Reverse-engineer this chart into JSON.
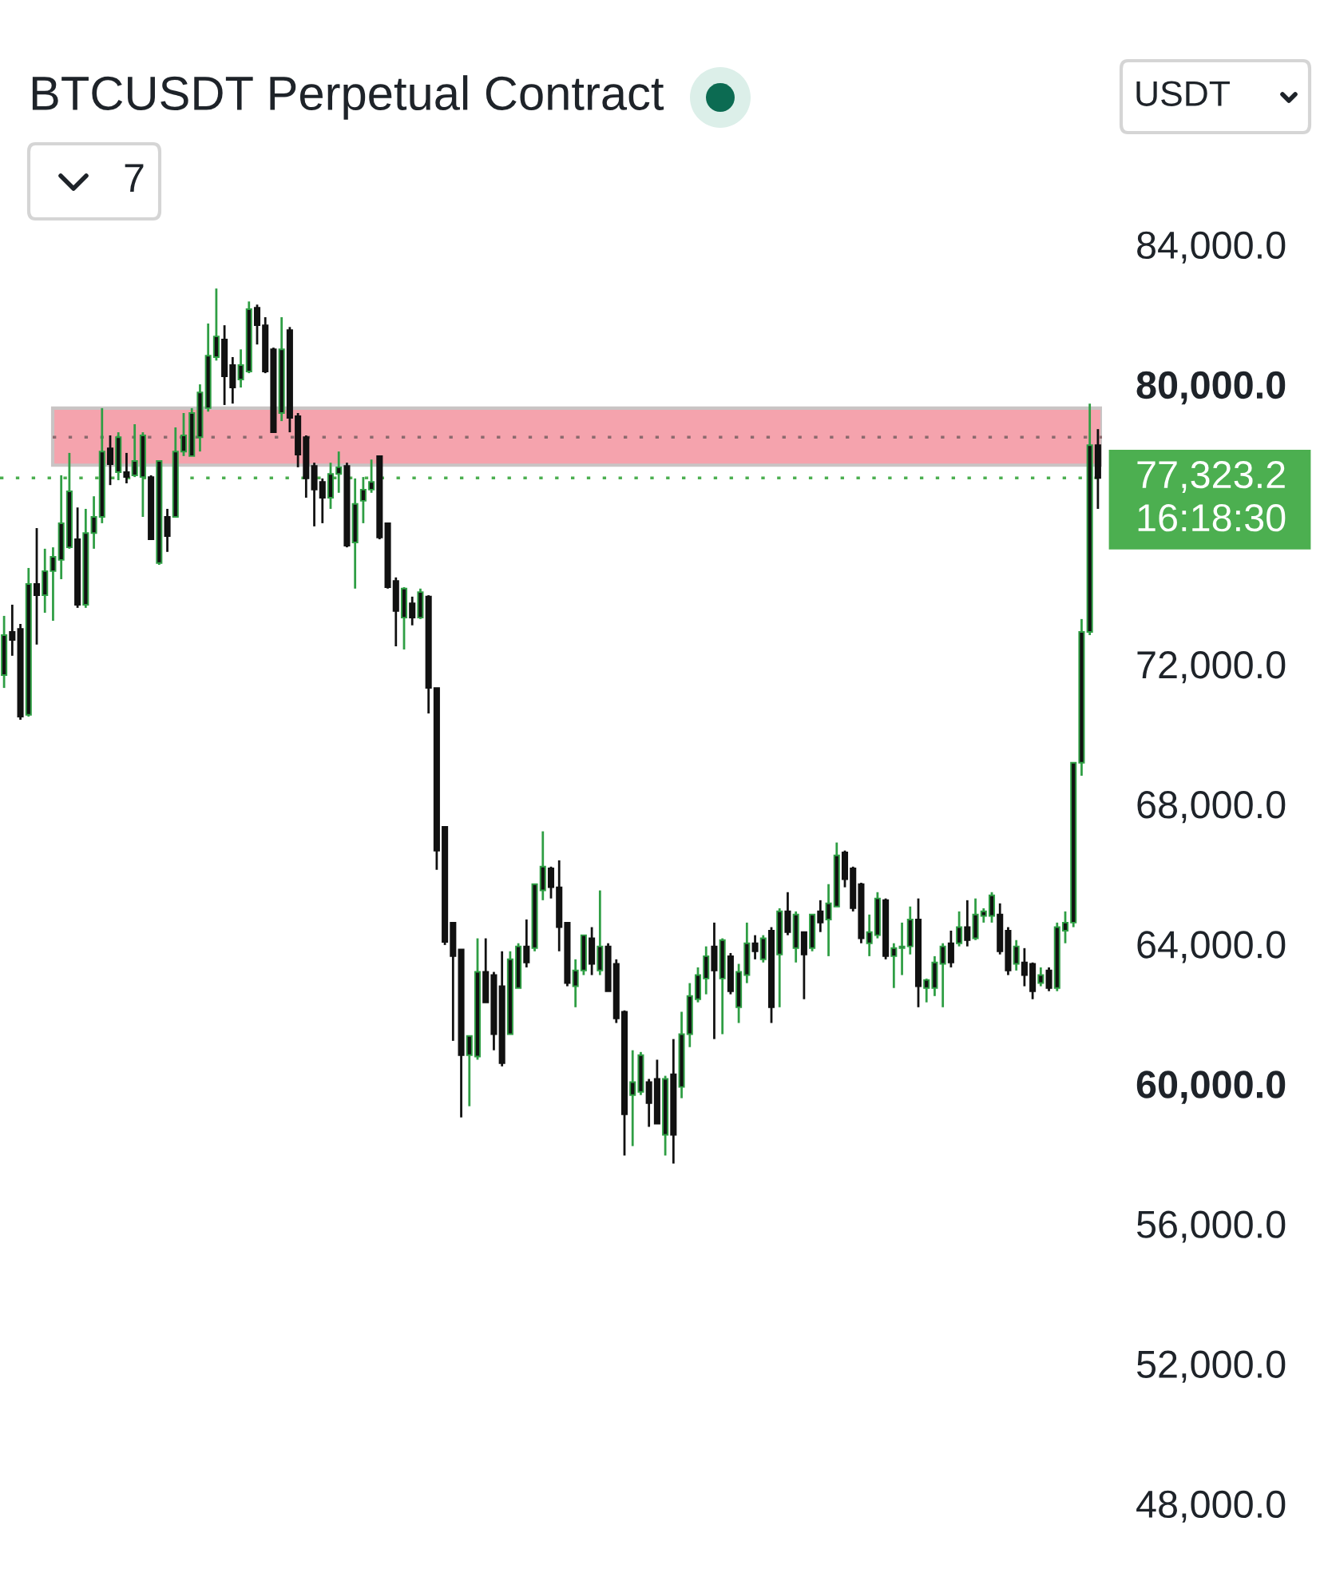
{
  "chart_data": {
    "type": "candlestick",
    "title": "BTCUSDT Perpetual Contract",
    "annotations": [
      "7",
      "USDT",
      "16:18:30"
    ],
    "categories": [
      null,
      null,
      null,
      null,
      null,
      null,
      null,
      null,
      null,
      null,
      null,
      null,
      null,
      null,
      null,
      null,
      null,
      null,
      null,
      null,
      null,
      null,
      null,
      null,
      null,
      null,
      null,
      null,
      null,
      null,
      null,
      null,
      null,
      null,
      null,
      null,
      null,
      null,
      null,
      null,
      null,
      null,
      null,
      null,
      null,
      null,
      null,
      null,
      null,
      null,
      null,
      null,
      null,
      null,
      null,
      null,
      null,
      null,
      null,
      null,
      null,
      null,
      null,
      null,
      null,
      null,
      null,
      null,
      null,
      null,
      null,
      null,
      null,
      null,
      null,
      null,
      null,
      null,
      null,
      null,
      null,
      null,
      null,
      null,
      null,
      null,
      null,
      null,
      null,
      null,
      null,
      null,
      null,
      null,
      null,
      null,
      null,
      null,
      null,
      null,
      null,
      null,
      null,
      null,
      null,
      null,
      null,
      null,
      null,
      null,
      null,
      null,
      null,
      null,
      null,
      null,
      null,
      null,
      null,
      null,
      null,
      null,
      null,
      null,
      null,
      null,
      null,
      null,
      null,
      null,
      null,
      null,
      null,
      null,
      null
    ],
    "ohlc": [
      [
        71690,
        73380,
        71320,
        72830
      ],
      [
        72920,
        73700,
        72240,
        72690
      ],
      [
        73010,
        73150,
        70410,
        70500
      ],
      [
        70550,
        74750,
        70500,
        74290
      ],
      [
        74290,
        75890,
        72560,
        73970
      ],
      [
        73970,
        75300,
        73470,
        74660
      ],
      [
        74660,
        75340,
        73240,
        75070
      ],
      [
        74980,
        77400,
        74430,
        76030
      ],
      [
        75340,
        78040,
        75300,
        76940
      ],
      [
        75570,
        76480,
        73610,
        73700
      ],
      [
        73700,
        76440,
        73610,
        75750
      ],
      [
        75750,
        76800,
        75300,
        76210
      ],
      [
        76210,
        79320,
        76030,
        78080
      ],
      [
        78170,
        78540,
        77120,
        77720
      ],
      [
        77490,
        78630,
        77260,
        78490
      ],
      [
        77490,
        78040,
        77170,
        77350
      ],
      [
        77400,
        78860,
        77350,
        77810
      ],
      [
        77350,
        78630,
        76210,
        78540
      ],
      [
        77350,
        77400,
        75570,
        75570
      ],
      [
        74890,
        77810,
        74840,
        77810
      ],
      [
        76210,
        76440,
        75210,
        75660
      ],
      [
        76210,
        78770,
        76210,
        78080
      ],
      [
        78080,
        79180,
        77950,
        78540
      ],
      [
        77950,
        79320,
        77950,
        79180
      ],
      [
        78490,
        80000,
        78080,
        79770
      ],
      [
        79320,
        81740,
        79220,
        80820
      ],
      [
        80780,
        82740,
        80680,
        81370
      ],
      [
        81280,
        81690,
        79410,
        80230
      ],
      [
        80550,
        80780,
        79450,
        79910
      ],
      [
        80140,
        81000,
        79910,
        80550
      ],
      [
        80370,
        82370,
        80320,
        82150
      ],
      [
        82190,
        82280,
        81140,
        81690
      ],
      [
        81690,
        81920,
        80320,
        80370
      ],
      [
        81000,
        81050,
        78630,
        78630
      ],
      [
        79180,
        81920,
        78950,
        81000
      ],
      [
        81550,
        81640,
        78630,
        79040
      ],
      [
        79090,
        79180,
        77630,
        77990
      ],
      [
        78490,
        78540,
        76760,
        77310
      ],
      [
        77670,
        77760,
        75940,
        76990
      ],
      [
        77210,
        77310,
        76030,
        76760
      ],
      [
        76760,
        77760,
        76440,
        77440
      ],
      [
        77440,
        78080,
        76900,
        77630
      ],
      [
        77670,
        77760,
        75340,
        75390
      ],
      [
        75480,
        77310,
        74160,
        76580
      ],
      [
        76670,
        77350,
        76030,
        76990
      ],
      [
        76990,
        77850,
        76900,
        77210
      ],
      [
        77950,
        77950,
        75570,
        75620
      ],
      [
        76030,
        76030,
        74160,
        74200
      ],
      [
        74380,
        74480,
        72510,
        73520
      ],
      [
        73330,
        74200,
        72420,
        74160
      ],
      [
        73740,
        73930,
        73110,
        73330
      ],
      [
        73330,
        74160,
        73290,
        74060
      ],
      [
        73930,
        73970,
        70590,
        71320
      ],
      [
        71320,
        71320,
        66120,
        66670
      ],
      [
        67350,
        67350,
        63970,
        64060
      ],
      [
        64610,
        64610,
        61230,
        63650
      ],
      [
        63840,
        63840,
        59040,
        60820
      ],
      [
        60820,
        61370,
        59360,
        61370
      ],
      [
        60780,
        64160,
        60690,
        63200
      ],
      [
        63200,
        64160,
        62330,
        62330
      ],
      [
        63110,
        63200,
        60960,
        61420
      ],
      [
        62790,
        63790,
        60500,
        60590
      ],
      [
        61420,
        63790,
        61420,
        63560
      ],
      [
        62740,
        64020,
        62740,
        63930
      ],
      [
        63930,
        64700,
        63330,
        63470
      ],
      [
        63880,
        65710,
        63790,
        65710
      ],
      [
        65530,
        67220,
        65250,
        66210
      ],
      [
        66160,
        66210,
        65300,
        65620
      ],
      [
        65620,
        66390,
        63790,
        64480
      ],
      [
        64610,
        64610,
        62790,
        62880
      ],
      [
        62790,
        63560,
        62190,
        63240
      ],
      [
        63240,
        64250,
        63110,
        64250
      ],
      [
        64160,
        64480,
        63110,
        63430
      ],
      [
        63240,
        65530,
        63110,
        63930
      ],
      [
        63930,
        64020,
        62650,
        62650
      ],
      [
        63430,
        63560,
        61740,
        61870
      ],
      [
        62060,
        62100,
        57950,
        59130
      ],
      [
        59680,
        60960,
        58220,
        60050
      ],
      [
        59770,
        60910,
        59680,
        60820
      ],
      [
        60050,
        60140,
        58770,
        59450
      ],
      [
        60140,
        60690,
        58860,
        58860
      ],
      [
        58540,
        60230,
        57950,
        60140
      ],
      [
        60270,
        61280,
        57720,
        58540
      ],
      [
        59910,
        62060,
        59590,
        61420
      ],
      [
        61420,
        62880,
        61050,
        62510
      ],
      [
        62420,
        63330,
        62330,
        63110
      ],
      [
        63010,
        63930,
        62560,
        63650
      ],
      [
        63930,
        64610,
        61280,
        63240
      ],
      [
        63010,
        64160,
        61420,
        64110
      ],
      [
        63650,
        63740,
        62560,
        62650
      ],
      [
        62190,
        63430,
        61740,
        63200
      ],
      [
        63110,
        64610,
        62880,
        64020
      ],
      [
        64020,
        64250,
        63560,
        63790
      ],
      [
        63560,
        64250,
        63470,
        64160
      ],
      [
        64380,
        64480,
        61740,
        62190
      ],
      [
        63700,
        65020,
        62190,
        64930
      ],
      [
        64930,
        65480,
        64250,
        64340
      ],
      [
        63880,
        64930,
        63470,
        64840
      ],
      [
        64340,
        64340,
        62420,
        63700
      ],
      [
        63880,
        64840,
        63790,
        64840
      ],
      [
        64930,
        65250,
        64340,
        64610
      ],
      [
        64700,
        65710,
        63650,
        65160
      ],
      [
        65070,
        66900,
        65070,
        66530
      ],
      [
        66620,
        66670,
        65620,
        65850
      ],
      [
        66160,
        66210,
        64930,
        65020
      ],
      [
        65710,
        65750,
        64020,
        64160
      ],
      [
        64020,
        64840,
        63650,
        64340
      ],
      [
        64250,
        65480,
        64160,
        65300
      ],
      [
        65250,
        65300,
        63560,
        63650
      ],
      [
        63650,
        64020,
        62740,
        63880
      ],
      [
        63880,
        64610,
        63110,
        63930
      ],
      [
        63930,
        65070,
        63700,
        64700
      ],
      [
        64700,
        65300,
        62190,
        62790
      ],
      [
        62740,
        63010,
        62330,
        62970
      ],
      [
        62740,
        63650,
        62510,
        63470
      ],
      [
        63430,
        64020,
        62190,
        63930
      ],
      [
        64020,
        64380,
        63330,
        63470
      ],
      [
        64020,
        64930,
        63930,
        64480
      ],
      [
        64480,
        65250,
        63930,
        64110
      ],
      [
        64160,
        65300,
        64110,
        64840
      ],
      [
        64800,
        65020,
        64610,
        64930
      ],
      [
        64800,
        65480,
        64610,
        65390
      ],
      [
        64840,
        65160,
        63700,
        63790
      ],
      [
        64380,
        64480,
        63110,
        63240
      ],
      [
        63430,
        64110,
        63240,
        63930
      ],
      [
        63470,
        63880,
        62790,
        63110
      ],
      [
        63430,
        63470,
        62420,
        62650
      ],
      [
        62880,
        63330,
        62790,
        63110
      ],
      [
        63240,
        63330,
        62650,
        62740
      ],
      [
        62740,
        64610,
        62650,
        64480
      ],
      [
        64380,
        64930,
        64020,
        64610
      ],
      [
        64610,
        69180,
        64480,
        69180
      ],
      [
        69180,
        73290,
        68810,
        72920
      ],
      [
        72920,
        79450,
        72830,
        78260
      ],
      [
        78260,
        78720,
        76440,
        77323.2
      ]
    ],
    "ylim": [
      48000,
      84000
    ],
    "yticks": [
      {
        "value": 48000,
        "label": "48,000.0"
      },
      {
        "value": 52000,
        "label": "52,000.0"
      },
      {
        "value": 56000,
        "label": "56,000.0"
      },
      {
        "value": 60000,
        "label": "60,000.0"
      },
      {
        "value": 64000,
        "label": "64,000.0"
      },
      {
        "value": 68000,
        "label": "68,000.0"
      },
      {
        "value": 72000,
        "label": "72,000.0"
      },
      {
        "value": 80000,
        "label": "80,000.0"
      },
      {
        "value": 84000,
        "label": "84,000.0"
      }
    ],
    "tick_labels": "y",
    "ref_lines": [
      {
        "axis": "y",
        "value": 77323.2,
        "label": "77,323.2",
        "color": "#4caf50",
        "line_style": "dotted"
      },
      {
        "axis": "y",
        "value": 78490,
        "color": "#8c6a6e",
        "line_style": "dotted"
      }
    ],
    "bands": [
      {
        "axis": "y",
        "from": 77690,
        "to": 79320,
        "color": "#f5a3ad"
      }
    ]
  }
}
